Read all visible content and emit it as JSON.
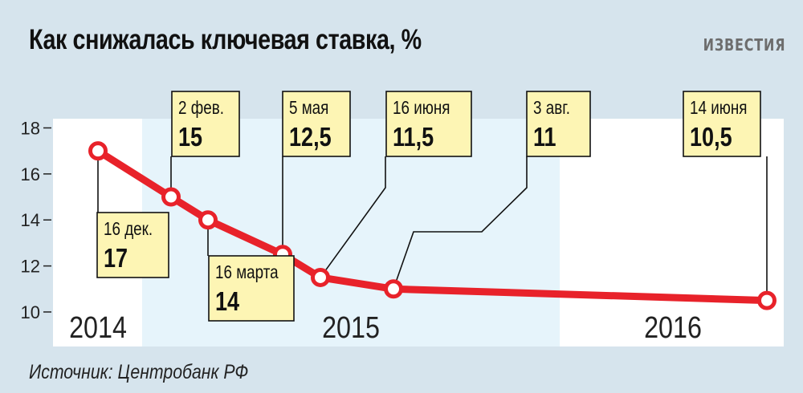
{
  "header": {
    "title": "Как снижалась ключевая ставка, %",
    "brand": "ИЗВЕСТИЯ"
  },
  "footer": {
    "source": "Источник: Центробанк РФ"
  },
  "colors": {
    "line": "#e8222a",
    "label_bg": "#fdf5b4",
    "band_2015": "#e6f4fb",
    "plot_bg": "#ffffff",
    "page_bg": "#d6e4ed"
  },
  "chart_data": {
    "type": "line",
    "title": "Как снижалась ключевая ставка, %",
    "xlabel": "",
    "ylabel": "",
    "ylim": [
      8.5,
      18.4
    ],
    "yticks": [
      10,
      12,
      14,
      16,
      18
    ],
    "grid": false,
    "legend": "none",
    "year_bands": [
      "2014",
      "2015",
      "2016"
    ],
    "points": [
      {
        "date": "16 дек.",
        "year": "2014",
        "value": 17,
        "value_label": "17"
      },
      {
        "date": "2 фев.",
        "year": "2015",
        "value": 15,
        "value_label": "15"
      },
      {
        "date": "16 марта",
        "year": "2015",
        "value": 14,
        "value_label": "14"
      },
      {
        "date": "5 мая",
        "year": "2015",
        "value": 12.5,
        "value_label": "12,5"
      },
      {
        "date": "16 июня",
        "year": "2015",
        "value": 11.5,
        "value_label": "11,5"
      },
      {
        "date": "3 авг.",
        "year": "2015",
        "value": 11,
        "value_label": "11"
      },
      {
        "date": "14 июня",
        "year": "2016",
        "value": 10.5,
        "value_label": "10,5"
      }
    ]
  }
}
